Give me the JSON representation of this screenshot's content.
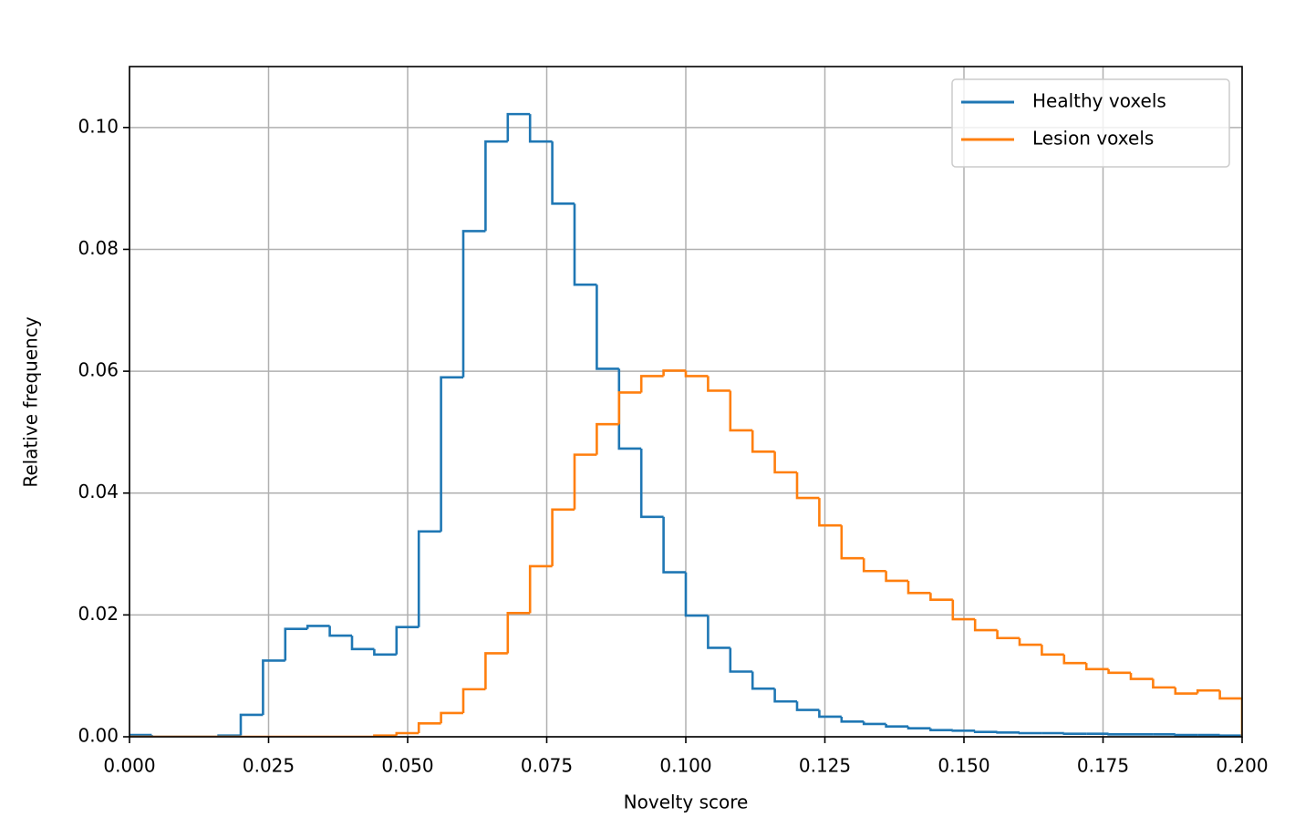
{
  "chart_data": {
    "type": "step-histogram",
    "x_label": "Novelty score",
    "y_label": "Relative frequency",
    "bins": [
      0,
      0.004,
      0.008,
      0.012,
      0.016,
      0.02,
      0.024,
      0.028,
      0.032,
      0.036,
      0.04,
      0.044,
      0.048,
      0.052,
      0.056,
      0.06,
      0.064,
      0.068,
      0.072,
      0.076,
      0.08,
      0.084,
      0.088,
      0.092,
      0.096,
      0.1,
      0.104,
      0.108,
      0.112,
      0.116,
      0.12,
      0.124,
      0.128,
      0.132,
      0.136,
      0.14,
      0.144,
      0.148,
      0.152,
      0.156,
      0.16,
      0.164,
      0.168,
      0.172,
      0.176,
      0.18,
      0.184,
      0.188,
      0.192,
      0.196,
      0.2
    ],
    "series": [
      {
        "name": "Healthy voxels",
        "color": "#1f77b4",
        "values": [
          0.0003,
          0,
          0,
          0,
          0.0002,
          0.0036,
          0.0125,
          0.0177,
          0.0182,
          0.0166,
          0.0144,
          0.0135,
          0.018,
          0.0337,
          0.059,
          0.083,
          0.0977,
          0.1022,
          0.0977,
          0.0875,
          0.0742,
          0.0604,
          0.0473,
          0.0361,
          0.027,
          0.0199,
          0.0146,
          0.0107,
          0.0079,
          0.0058,
          0.0044,
          0.0033,
          0.0025,
          0.0021,
          0.0017,
          0.0014,
          0.0011,
          0.001,
          0.0008,
          0.0007,
          0.0006,
          0.0006,
          0.0005,
          0.0005,
          0.0004,
          0.0004,
          0.0004,
          0.0003,
          0.0003,
          0.0002
        ]
      },
      {
        "name": "Lesion voxels",
        "color": "#ff7f0e",
        "values": [
          0,
          0,
          0,
          0,
          0,
          0,
          0,
          0,
          0,
          0,
          0,
          0.0002,
          0.0006,
          0.0022,
          0.0039,
          0.0078,
          0.0137,
          0.0203,
          0.028,
          0.0373,
          0.0463,
          0.0513,
          0.0565,
          0.0592,
          0.0601,
          0.0592,
          0.0568,
          0.0503,
          0.0468,
          0.0434,
          0.0392,
          0.0347,
          0.0293,
          0.0272,
          0.0256,
          0.0236,
          0.0225,
          0.0193,
          0.0175,
          0.0162,
          0.0151,
          0.0135,
          0.0121,
          0.0111,
          0.0105,
          0.0095,
          0.0081,
          0.0071,
          0.0076,
          0.0063
        ]
      }
    ],
    "xlim": [
      0,
      0.2
    ],
    "xticks": [
      {
        "value": 0,
        "label": "0.000"
      },
      {
        "value": 0.025,
        "label": "0.025"
      },
      {
        "value": 0.05,
        "label": "0.050"
      },
      {
        "value": 0.075,
        "label": "0.075"
      },
      {
        "value": 0.1,
        "label": "0.100"
      },
      {
        "value": 0.125,
        "label": "0.125"
      },
      {
        "value": 0.15,
        "label": "0.150"
      },
      {
        "value": 0.175,
        "label": "0.175"
      },
      {
        "value": 0.2,
        "label": "0.200"
      }
    ],
    "ylim": [
      0,
      0.11
    ],
    "yticks": [
      {
        "value": 0,
        "label": "0.00"
      },
      {
        "value": 0.02,
        "label": "0.02"
      },
      {
        "value": 0.04,
        "label": "0.04"
      },
      {
        "value": 0.06,
        "label": "0.06"
      },
      {
        "value": 0.08,
        "label": "0.08"
      },
      {
        "value": 0.1,
        "label": "0.10"
      }
    ],
    "grid": true,
    "legend": "upper right"
  }
}
